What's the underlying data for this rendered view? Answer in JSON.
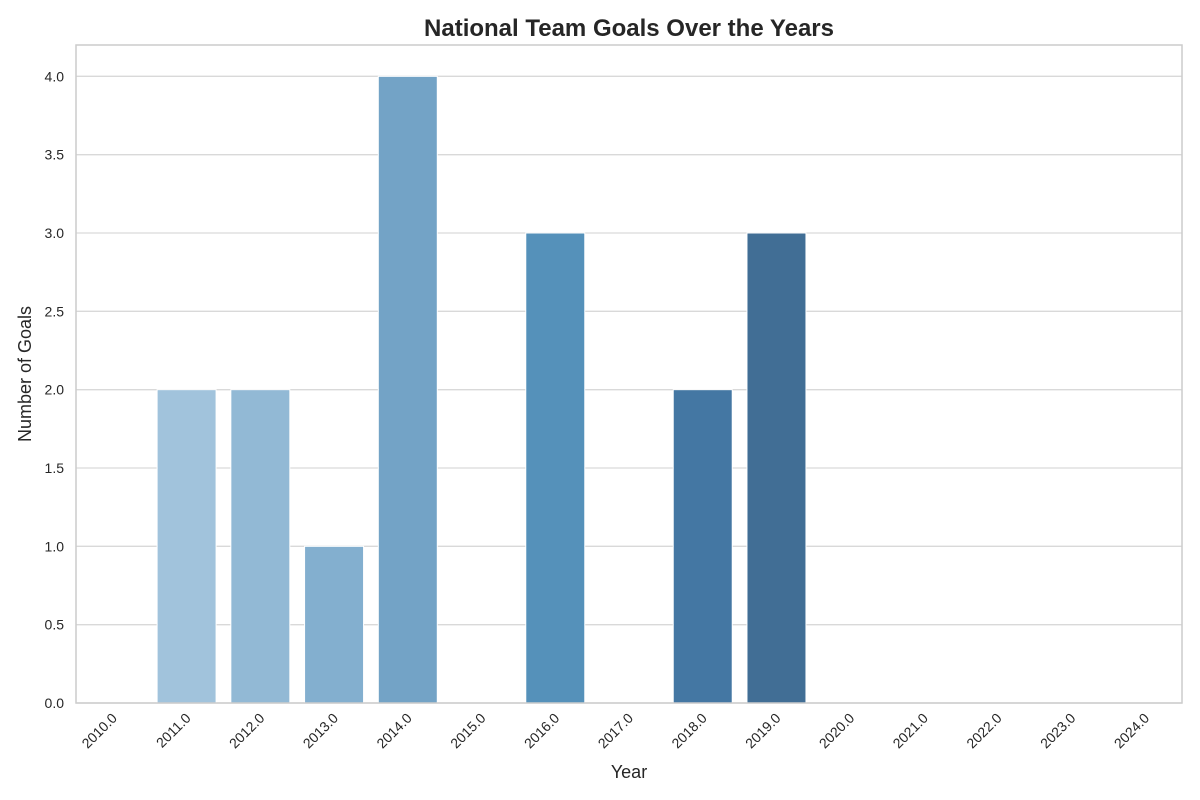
{
  "chart_data": {
    "type": "bar",
    "title": "National Team Goals Over the Years",
    "xlabel": "Year",
    "ylabel": "Number of Goals",
    "categories": [
      "2010.0",
      "2011.0",
      "2012.0",
      "2013.0",
      "2014.0",
      "2015.0",
      "2016.0",
      "2017.0",
      "2018.0",
      "2019.0",
      "2020.0",
      "2021.0",
      "2022.0",
      "2023.0",
      "2024.0"
    ],
    "values": [
      0,
      2,
      2,
      1,
      4,
      0,
      3,
      0,
      2,
      3,
      0,
      0,
      0,
      0,
      0
    ],
    "ylim": [
      0,
      4.2
    ],
    "yticks": [
      "0.0",
      "0.5",
      "1.0",
      "1.5",
      "2.0",
      "2.5",
      "3.0",
      "3.5",
      "4.0"
    ],
    "grid": "horizontal",
    "colors": [
      "#a9c8df",
      "#a1c3dc",
      "#92b9d5",
      "#83afcf",
      "#73a3c6",
      "#6399c0",
      "#5591ba",
      "#4a85b0",
      "#4477a3",
      "#416e95",
      "#3e6688",
      "#3b5f7e",
      "#385875",
      "#35516c",
      "#324b64"
    ]
  }
}
